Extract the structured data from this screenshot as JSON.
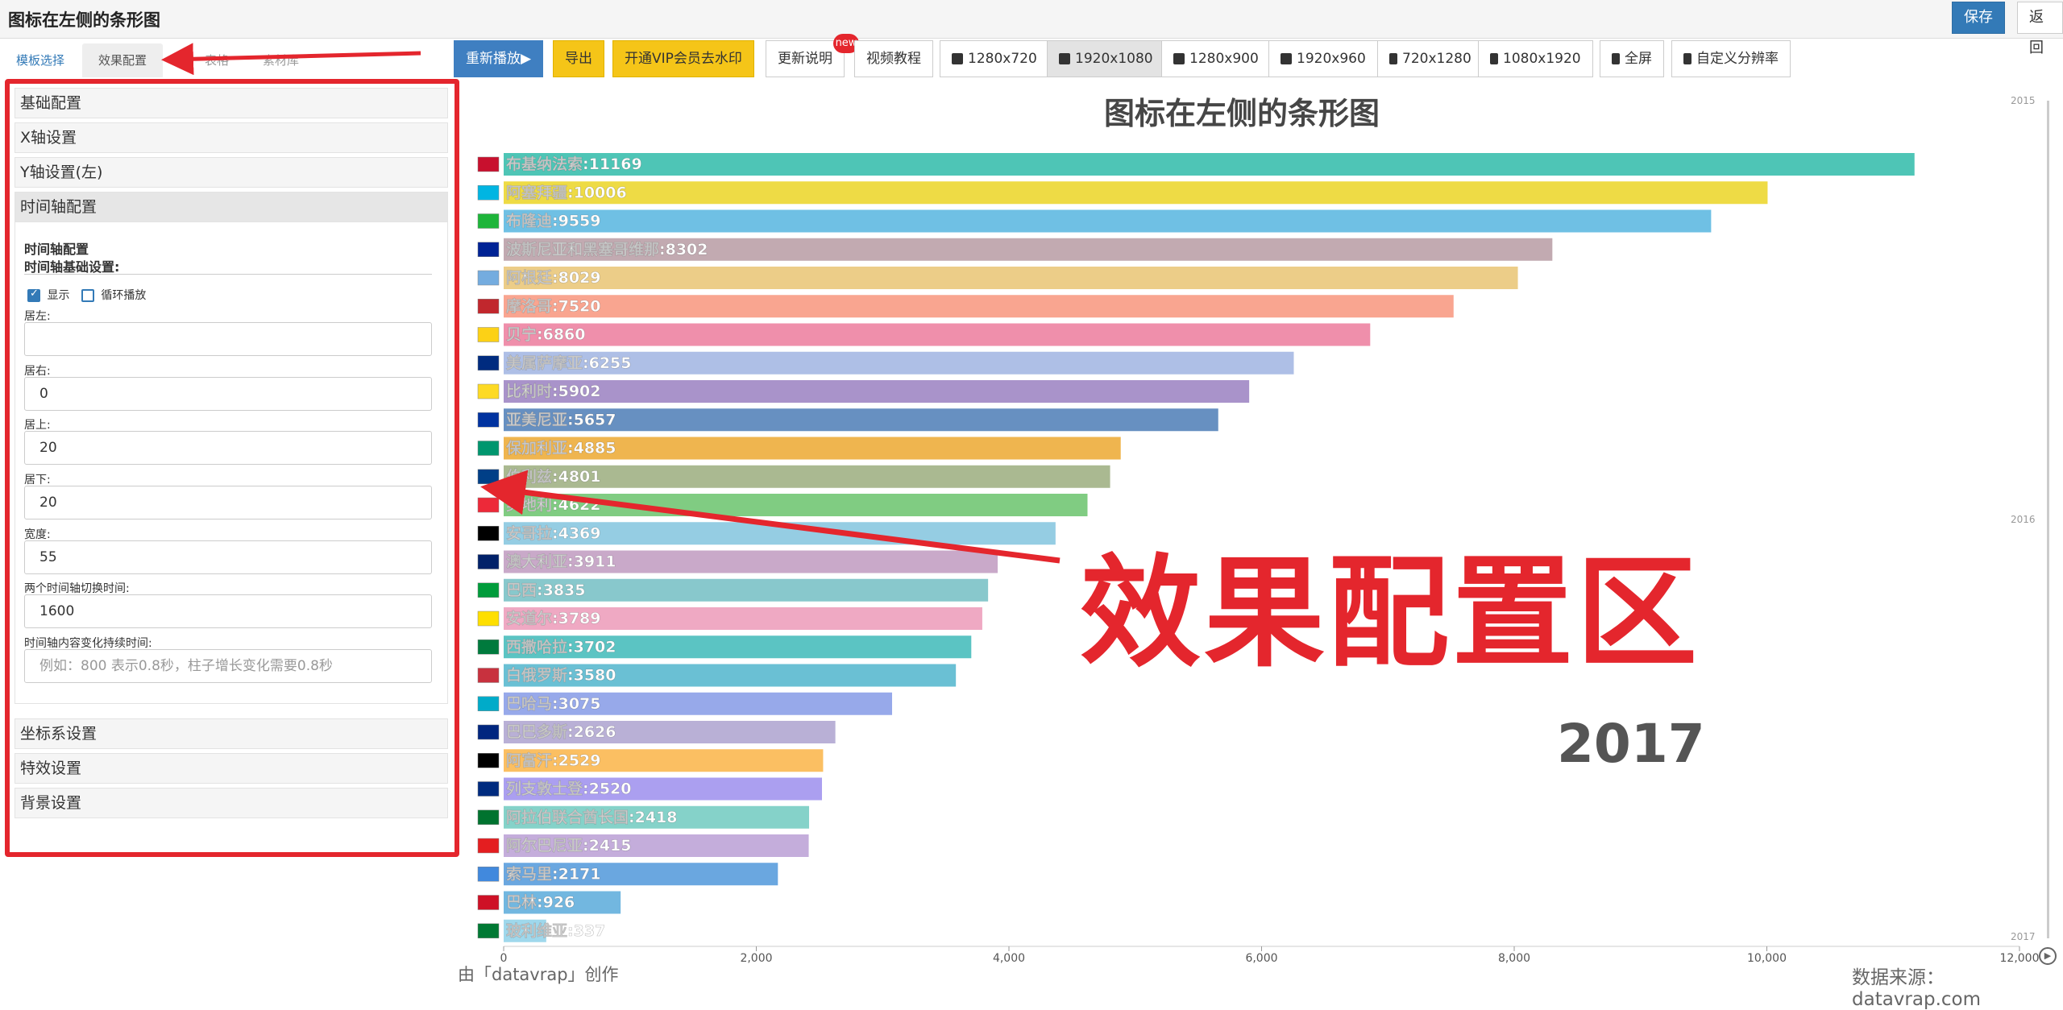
{
  "app": {
    "title": "图标在左侧的条形图",
    "save_label": "保存",
    "back_label": "返回"
  },
  "left_tabs": [
    {
      "label": "模板选择",
      "active": false
    },
    {
      "label": "效果配置",
      "active": true
    },
    {
      "label": "表格",
      "active": false
    },
    {
      "label": "素材库",
      "active": false
    }
  ],
  "config": {
    "sections_top": [
      "基础配置",
      "X轴设置",
      "Y轴设置(左)",
      "时间轴配置"
    ],
    "sections_bottom": [
      "坐标系设置",
      "特效设置",
      "背景设置"
    ],
    "timeline_title": "时间轴配置",
    "timeline_subtitle": "时间轴基础设置:",
    "show_label": "显示",
    "loop_label": "循环播放",
    "fields": [
      {
        "label": "居左:",
        "value": "",
        "placeholder": ""
      },
      {
        "label": "居右:",
        "value": "0",
        "placeholder": ""
      },
      {
        "label": "居上:",
        "value": "20",
        "placeholder": ""
      },
      {
        "label": "居下:",
        "value": "20",
        "placeholder": ""
      },
      {
        "label": "宽度:",
        "value": "55",
        "placeholder": ""
      },
      {
        "label": "两个时间轴切换时间:",
        "value": "1600",
        "placeholder": ""
      },
      {
        "label": "时间轴内容变化持续时间:",
        "value": "",
        "placeholder": "例如：800 表示0.8秒，柱子增长变化需要0.8秒"
      }
    ]
  },
  "toolbar": {
    "replay": "重新播放▶",
    "export": "导出",
    "vip": "开通VIP会员去水印",
    "changelog": "更新说明",
    "new_badge": "new",
    "tutorial": "视频教程",
    "resolutions": [
      "1280x720",
      "1920x1080",
      "1280x900",
      "1920x960",
      "720x1280",
      "1080x1920",
      "全屏",
      "自定义分辨率"
    ],
    "active_resolution": "1920x1080"
  },
  "chart_data": {
    "type": "bar",
    "title": "图标在左侧的条形图",
    "orientation": "horizontal",
    "current_year": "2017",
    "timeline_labels": [
      "2015",
      "2016",
      "2017"
    ],
    "xlim": [
      0,
      12000
    ],
    "xticks": [
      "0",
      "2,000",
      "4,000",
      "6,000",
      "8,000",
      "10,000",
      "12,000"
    ],
    "categories": [
      "布基纳法索",
      "阿塞拜疆",
      "布隆迪",
      "波斯尼亚和黑塞哥维那",
      "阿根廷",
      "摩洛哥",
      "贝宁",
      "美属萨摩亚",
      "比利时",
      "亚美尼亚",
      "保加利亚",
      "伯利兹",
      "奥地利",
      "安哥拉",
      "澳大利亚",
      "巴西",
      "安道尔",
      "西撒哈拉",
      "白俄罗斯",
      "巴哈马",
      "巴巴多斯",
      "阿富汗",
      "列支敦士登",
      "阿拉伯联合酋长国",
      "阿尔巴尼亚",
      "索马里",
      "巴林",
      "玻利维亚"
    ],
    "bar_labels": [
      "布基纳法索:11169",
      "阿塞拜疆:10006",
      "布隆迪:9559",
      "波斯尼亚和黑塞哥维那:8302",
      "阿根廷:8029",
      "摩洛哥:7520",
      "贝宁:6860",
      "美属萨摩亚:6255",
      "比利时:5902",
      "亚美尼亚:5657",
      "保加利亚:4885",
      "伯利兹:4801",
      "奥地利:4622",
      "安哥拉:4369",
      "澳大利亚:3911",
      "巴西:3835",
      "安道尔:3789",
      "西撒哈拉:3702",
      "白俄罗斯:3580",
      "巴哈马:3075",
      "巴巴多斯:2626",
      "阿富汗:2529",
      "列支敦士登:2520",
      "阿拉伯联合酋长国:2418",
      "阿尔巴尼亚:2415",
      "索马里:2171",
      "巴林:926",
      "玻利维亚:337"
    ],
    "values": [
      11169,
      10006,
      9559,
      8302,
      8029,
      7520,
      6860,
      6255,
      5902,
      5657,
      4885,
      4801,
      4622,
      4369,
      3911,
      3835,
      3789,
      3702,
      3580,
      3075,
      2626,
      2529,
      2520,
      2418,
      2415,
      2171,
      926,
      337
    ],
    "colors": [
      "#4ec5b6",
      "#eedb45",
      "#6fc0e4",
      "#c2aab1",
      "#eccd88",
      "#f9a590",
      "#ef8fab",
      "#aebfe6",
      "#a993ca",
      "#6790c1",
      "#efb54f",
      "#aab991",
      "#80cc82",
      "#95cde3",
      "#c9a9c9",
      "#88c8cc",
      "#efa9c3",
      "#5bc4c3",
      "#6ac0d4",
      "#97a9ea",
      "#b9b0d6",
      "#fbbf62",
      "#ab9ff0",
      "#85d2c9",
      "#c4addb",
      "#6aa7e0",
      "#72b7e0",
      "#9fd8ec"
    ],
    "flag_colors": [
      "#c8102e",
      "#00b5e2",
      "#1eb53a",
      "#002395",
      "#74acdf",
      "#c1272d",
      "#fcd116",
      "#002b7f",
      "#fdda24",
      "#0033a0",
      "#00966e",
      "#003f87",
      "#ed2939",
      "#000000",
      "#012169",
      "#009c3b",
      "#fedf00",
      "#007a3d",
      "#c8313e",
      "#00abc9",
      "#00267f",
      "#000000",
      "#002b7f",
      "#00732f",
      "#e41e20",
      "#4189dd",
      "#ce1126",
      "#007934"
    ]
  },
  "overlay": {
    "annotation": "效果配置区"
  },
  "footer": {
    "credit": "由「datavrap」创作",
    "source": "数据来源：datavrap.com"
  },
  "icons": {
    "play": "play-icon",
    "monitor": "monitor-icon",
    "phone": "phone-icon",
    "file": "file-icon"
  }
}
